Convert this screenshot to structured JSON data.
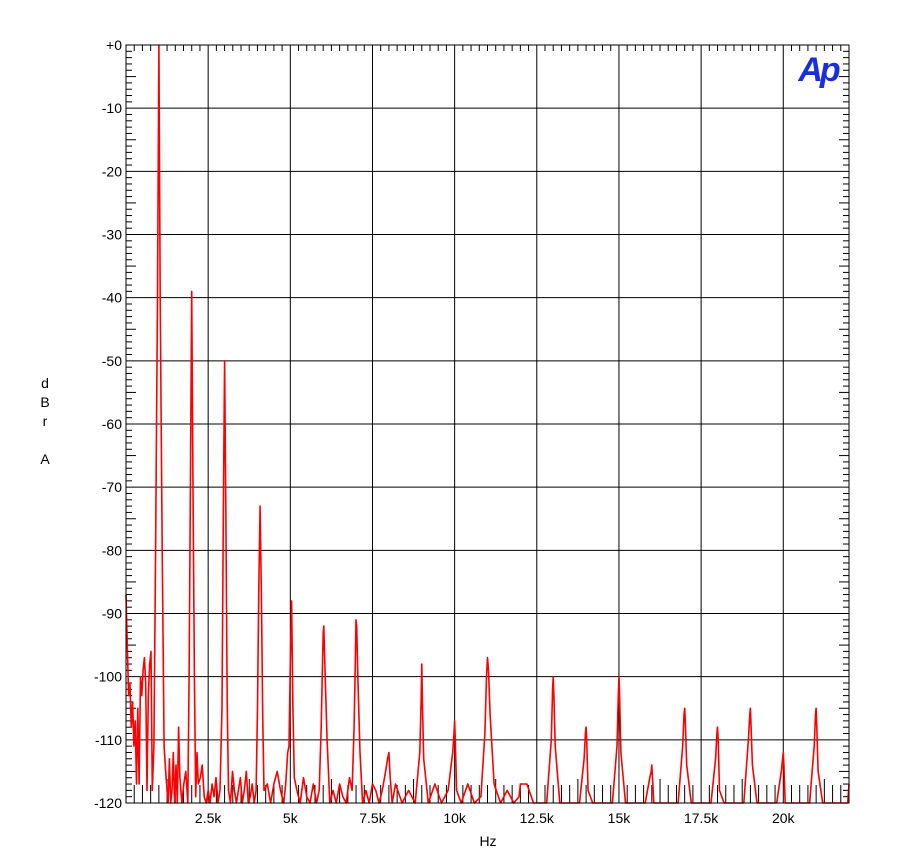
{
  "chart_data": {
    "type": "line",
    "xlabel": "Hz",
    "ylabel": "dBr A",
    "ylabel_lines": [
      "d",
      "B",
      "r",
      "",
      "A"
    ],
    "logo": "Ap",
    "xlim": [
      0,
      22000
    ],
    "ylim": [
      -120,
      0
    ],
    "x_ticks": [
      2500,
      5000,
      7500,
      10000,
      12500,
      15000,
      17500,
      20000
    ],
    "x_tick_labels": [
      "2.5k",
      "5k",
      "7.5k",
      "10k",
      "12.5k",
      "15k",
      "17.5k",
      "20k"
    ],
    "y_ticks": [
      0,
      -10,
      -20,
      -30,
      -40,
      -50,
      -60,
      -70,
      -80,
      -90,
      -100,
      -110,
      -120
    ],
    "y_tick_labels": [
      "+0",
      "-10",
      "-20",
      "-30",
      "-40",
      "-50",
      "-60",
      "-70",
      "-80",
      "-90",
      "-100",
      "-110",
      "-120"
    ],
    "grid": true,
    "series": [
      {
        "color": "#ff0000",
        "x": [
          0,
          40,
          80,
          120,
          160,
          200,
          240,
          280,
          320,
          360,
          400,
          440,
          480,
          520,
          560,
          600,
          640,
          680,
          720,
          760,
          800,
          850,
          900,
          960,
          1000,
          1040,
          1100,
          1160,
          1220,
          1280,
          1320,
          1360,
          1400,
          1440,
          1480,
          1520,
          1560,
          1600,
          1640,
          1700,
          1760,
          1820,
          1880,
          1920,
          1960,
          2000,
          2040,
          2080,
          2120,
          2160,
          2200,
          2260,
          2320,
          2380,
          2440,
          2500,
          2560,
          2620,
          2680,
          2740,
          2800,
          2860,
          2920,
          2960,
          3000,
          3040,
          3080,
          3120,
          3180,
          3240,
          3300,
          3360,
          3420,
          3480,
          3540,
          3600,
          3660,
          3720,
          3780,
          3840,
          3900,
          3960,
          4000,
          4040,
          4080,
          4120,
          4160,
          4200,
          4300,
          4400,
          4500,
          4600,
          4700,
          4800,
          4860,
          4920,
          4960,
          5000,
          5040,
          5080,
          5120,
          5200,
          5300,
          5400,
          5500,
          5600,
          5700,
          5800,
          5880,
          5940,
          5980,
          6000,
          6020,
          6060,
          6120,
          6200,
          6300,
          6400,
          6500,
          6600,
          6700,
          6800,
          6880,
          6940,
          6980,
          7000,
          7020,
          7060,
          7120,
          7200,
          7300,
          7400,
          7500,
          7600,
          7700,
          7800,
          7900,
          7960,
          8000,
          8040,
          8100,
          8200,
          8400,
          8600,
          8800,
          8940,
          8980,
          9000,
          9020,
          9060,
          9200,
          9400,
          9600,
          9800,
          9940,
          9980,
          10000,
          10020,
          10060,
          10200,
          10400,
          10600,
          10800,
          10920,
          10970,
          11000,
          11030,
          11080,
          11200,
          11400,
          11600,
          11800,
          11960,
          12000,
          12040,
          12200,
          12400,
          12600,
          12800,
          12940,
          12980,
          13000,
          13020,
          13060,
          13200,
          13400,
          13600,
          13800,
          13940,
          13980,
          14000,
          14020,
          14060,
          14200,
          14400,
          14600,
          14800,
          14940,
          14980,
          15000,
          15020,
          15060,
          15200,
          15400,
          15600,
          15800,
          15940,
          15980,
          16000,
          16020,
          16060,
          16200,
          16400,
          16600,
          16800,
          16940,
          16980,
          17000,
          17020,
          17060,
          17200,
          17400,
          17600,
          17800,
          17940,
          17980,
          18000,
          18020,
          18060,
          18200,
          18400,
          18600,
          18800,
          18940,
          18980,
          19000,
          19020,
          19060,
          19200,
          19400,
          19600,
          19800,
          19940,
          19980,
          20000,
          20020,
          20060,
          20200,
          20400,
          20600,
          20800,
          20940,
          20980,
          21000,
          21020,
          21060,
          21200,
          21400,
          21600,
          21800,
          21960,
          22000
        ],
        "y": [
          -87,
          -95,
          -103,
          -101,
          -108,
          -104,
          -111,
          -107,
          -117,
          -105,
          -117,
          -100,
          -103,
          -99,
          -97,
          -101,
          -118,
          -103,
          -98,
          -96,
          -118,
          -111,
          -80,
          -40,
          0,
          -40,
          -80,
          -111,
          -116,
          -120,
          -113,
          -120,
          -118,
          -112,
          -120,
          -114,
          -120,
          -108,
          -116,
          -120,
          -117,
          -115,
          -120,
          -100,
          -70,
          -39,
          -70,
          -100,
          -119,
          -112,
          -117,
          -116,
          -114,
          -119,
          -120,
          -118,
          -120,
          -117,
          -119,
          -116,
          -120,
          -118,
          -105,
          -75,
          -50,
          -75,
          -104,
          -118,
          -120,
          -115,
          -118,
          -120,
          -118,
          -116,
          -120,
          -118,
          -115,
          -120,
          -119,
          -117,
          -120,
          -118,
          -105,
          -86,
          -73,
          -87,
          -106,
          -118,
          -117,
          -120,
          -117,
          -115,
          -118,
          -120,
          -117,
          -112,
          -111,
          -98,
          -88,
          -105,
          -116,
          -118,
          -120,
          -116,
          -119,
          -120,
          -117,
          -120,
          -118,
          -108,
          -98,
          -93,
          -92,
          -100,
          -110,
          -120,
          -118,
          -120,
          -117,
          -119,
          -120,
          -116,
          -118,
          -108,
          -97,
          -91,
          -92,
          -101,
          -112,
          -120,
          -118,
          -120,
          -117,
          -118,
          -120,
          -118,
          -115,
          -113,
          -112,
          -116,
          -120,
          -117,
          -120,
          -118,
          -120,
          -112,
          -104,
          -98,
          -104,
          -113,
          -120,
          -117,
          -120,
          -118,
          -112,
          -109,
          -107,
          -110,
          -118,
          -120,
          -117,
          -120,
          -119,
          -109,
          -100,
          -97,
          -99,
          -106,
          -117,
          -120,
          -118,
          -120,
          -119,
          -117,
          -117,
          -117,
          -120,
          -120,
          -120,
          -110,
          -102,
          -100,
          -103,
          -111,
          -120,
          -120,
          -120,
          -120,
          -113,
          -109,
          -108,
          -110,
          -118,
          -120,
          -120,
          -120,
          -120,
          -111,
          -103,
          -100,
          -103,
          -112,
          -120,
          -120,
          -120,
          -120,
          -116,
          -115,
          -114,
          -116,
          -120,
          -120,
          -120,
          -120,
          -120,
          -111,
          -106,
          -105,
          -107,
          -114,
          -120,
          -120,
          -120,
          -120,
          -113,
          -109,
          -108,
          -110,
          -118,
          -120,
          -120,
          -120,
          -120,
          -110,
          -106,
          -105,
          -108,
          -114,
          -120,
          -120,
          -120,
          -120,
          -115,
          -113,
          -112,
          -114,
          -120,
          -120,
          -120,
          -120,
          -120,
          -111,
          -106,
          -105,
          -108,
          -115,
          -120,
          -120,
          -120,
          -120,
          -120,
          -117
        ]
      }
    ]
  }
}
